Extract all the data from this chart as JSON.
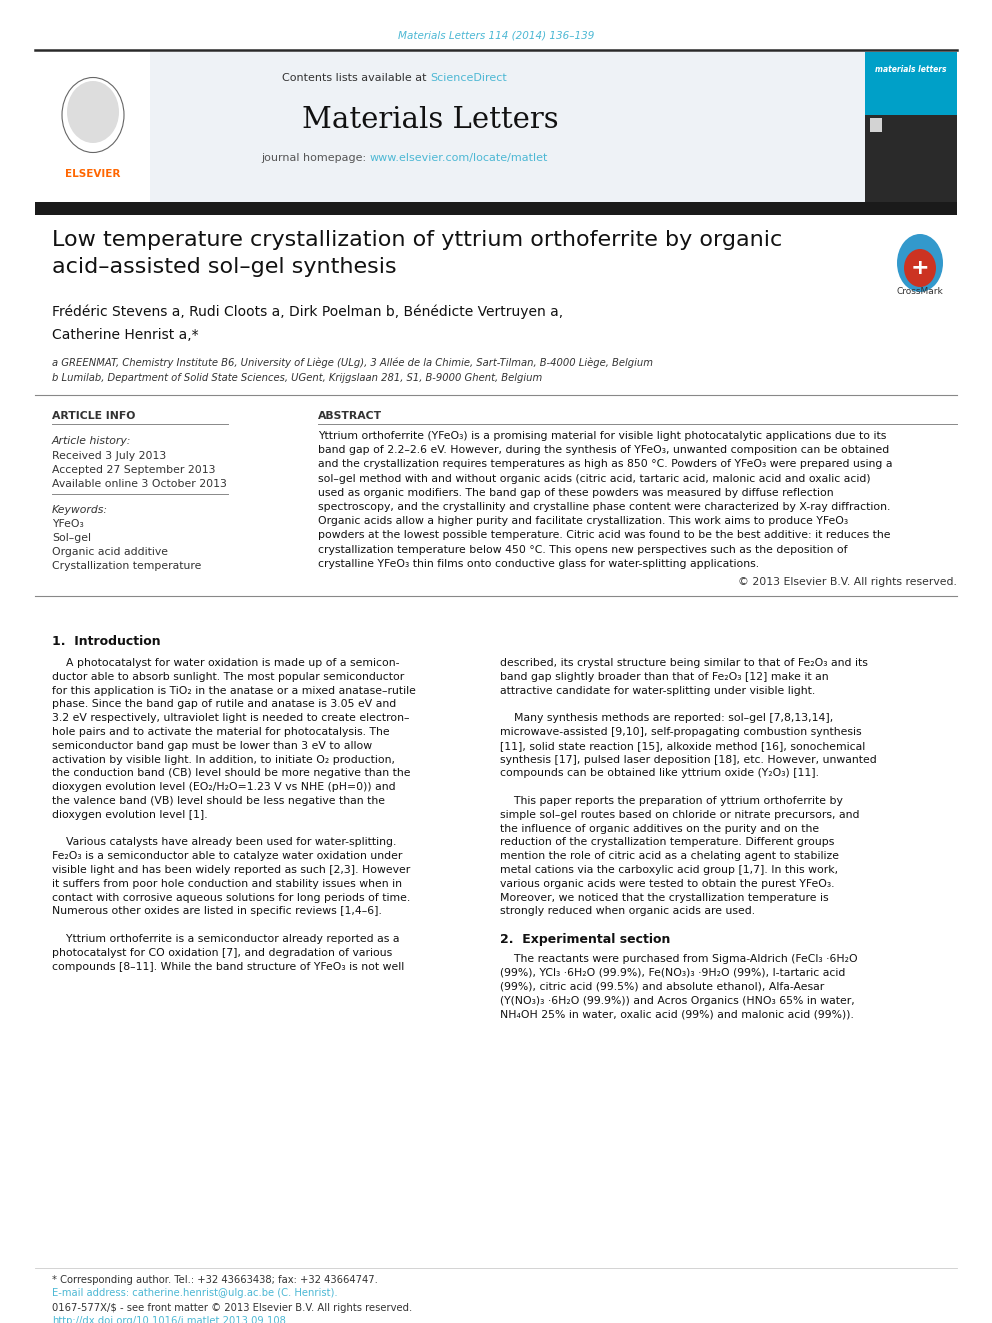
{
  "page_bg": "#ffffff",
  "top_citation": "Materials Letters 114 (2014) 136–139",
  "top_citation_color": "#4db8d4",
  "header_bg": "#eef2f6",
  "journal_title": "Materials Letters",
  "contents_text": "Contents lists available at ",
  "sciencedirect_text": "ScienceDirect",
  "sciencedirect_color": "#4db8d4",
  "journal_homepage_text": "journal homepage: ",
  "journal_url": "www.elsevier.com/locate/matlet",
  "journal_url_color": "#4db8d4",
  "elsevier_logo_color": "#ff6600",
  "dark_bar_color": "#1a1a1a",
  "article_title_line1": "Low temperature crystallization of yttrium orthoferrite by organic",
  "article_title_line2": "acid–assisted sol–gel synthesis",
  "author_line1": "Frédéric Stevens a, Rudi Cloots a, Dirk Poelman b, Bénédicte Vertruyen a,",
  "author_line2": "Catherine Henrist a,*",
  "affiliation_a": "a GREENMAT, Chemistry Institute B6, University of Liège (ULg), 3 Allée de la Chimie, Sart-Tilman, B-4000 Liège, Belgium",
  "affiliation_b": "b Lumilab, Department of Solid State Sciences, UGent, Krijgslaan 281, S1, B-9000 Ghent, Belgium",
  "article_info_title": "ARTICLE INFO",
  "abstract_title": "ABSTRACT",
  "article_history_label": "Article history:",
  "received": "Received 3 July 2013",
  "accepted": "Accepted 27 September 2013",
  "available": "Available online 3 October 2013",
  "keywords_label": "Keywords:",
  "keyword1": "YFeO₃",
  "keyword2": "Sol–gel",
  "keyword3": "Organic acid additive",
  "keyword4": "Crystallization temperature",
  "copyright": "© 2013 Elsevier B.V. All rights reserved.",
  "intro_title": "1.  Introduction",
  "section2_title": "2.  Experimental section",
  "footer_text1": "* Corresponding author. Tel.: +32 43663438; fax: +32 43664747.",
  "footer_text2": "E-mail address: catherine.henrist@ulg.ac.be (C. Henrist).",
  "footer_issn": "0167-577X/$ - see front matter © 2013 Elsevier B.V. All rights reserved.",
  "footer_doi": "http://dx.doi.org/10.1016/j.matlet.2013.09.108",
  "ref_color": "#4db8d4",
  "footer_color": "#4db8d4",
  "abstract_lines": [
    "Yttrium orthoferrite (YFeO₃) is a promising material for visible light photocatalytic applications due to its",
    "band gap of 2.2–2.6 eV. However, during the synthesis of YFeO₃, unwanted composition can be obtained",
    "and the crystallization requires temperatures as high as 850 °C. Powders of YFeO₃ were prepared using a",
    "sol–gel method with and without organic acids (citric acid, tartaric acid, malonic acid and oxalic acid)",
    "used as organic modifiers. The band gap of these powders was measured by diffuse reflection",
    "spectroscopy, and the crystallinity and crystalline phase content were characterized by X-ray diffraction.",
    "Organic acids allow a higher purity and facilitate crystallization. This work aims to produce YFeO₃",
    "powders at the lowest possible temperature. Citric acid was found to be the best additive: it reduces the",
    "crystallization temperature below 450 °C. This opens new perspectives such as the deposition of",
    "crystalline YFeO₃ thin films onto conductive glass for water-splitting applications."
  ],
  "intro_left_lines": [
    "    A photocatalyst for water oxidation is made up of a semicon-",
    "ductor able to absorb sunlight. The most popular semiconductor",
    "for this application is TiO₂ in the anatase or a mixed anatase–rutile",
    "phase. Since the band gap of rutile and anatase is 3.05 eV and",
    "3.2 eV respectively, ultraviolet light is needed to create electron–",
    "hole pairs and to activate the material for photocatalysis. The",
    "semiconductor band gap must be lower than 3 eV to allow",
    "activation by visible light. In addition, to initiate O₂ production,",
    "the conduction band (CB) level should be more negative than the",
    "dioxygen evolution level (EO₂/H₂O=1.23 V vs NHE (pH=0)) and",
    "the valence band (VB) level should be less negative than the",
    "dioxygen evolution level [1].",
    "",
    "    Various catalysts have already been used for water-splitting.",
    "Fe₂O₃ is a semiconductor able to catalyze water oxidation under",
    "visible light and has been widely reported as such [2,3]. However",
    "it suffers from poor hole conduction and stability issues when in",
    "contact with corrosive aqueous solutions for long periods of time.",
    "Numerous other oxides are listed in specific reviews [1,4–6].",
    "",
    "    Yttrium orthoferrite is a semiconductor already reported as a",
    "photocatalyst for CO oxidation [7], and degradation of various",
    "compounds [8–11]. While the band structure of YFeO₃ is not well"
  ],
  "intro_right_lines": [
    "described, its crystal structure being similar to that of Fe₂O₃ and its",
    "band gap slightly broader than that of Fe₂O₃ [12] make it an",
    "attractive candidate for water-splitting under visible light.",
    "",
    "    Many synthesis methods are reported: sol–gel [7,8,13,14],",
    "microwave-assisted [9,10], self-propagating combustion synthesis",
    "[11], solid state reaction [15], alkoxide method [16], sonochemical",
    "synthesis [17], pulsed laser deposition [18], etc. However, unwanted",
    "compounds can be obtained like yttrium oxide (Y₂O₃) [11].",
    "",
    "    This paper reports the preparation of yttrium orthoferrite by",
    "simple sol–gel routes based on chloride or nitrate precursors, and",
    "the influence of organic additives on the purity and on the",
    "reduction of the crystallization temperature. Different groups",
    "mention the role of citric acid as a chelating agent to stabilize",
    "metal cations via the carboxylic acid group [1,7]. In this work,",
    "various organic acids were tested to obtain the purest YFeO₃.",
    "Moreover, we noticed that the crystallization temperature is",
    "strongly reduced when organic acids are used."
  ],
  "sec2_lines": [
    "    The reactants were purchased from Sigma-Aldrich (FeCl₃ ·6H₂O",
    "(99%), YCl₃ ·6H₂O (99.9%), Fe(NO₃)₃ ·9H₂O (99%), l-tartaric acid",
    "(99%), citric acid (99.5%) and absolute ethanol), Alfa-Aesar",
    "(Y(NO₃)₃ ·6H₂O (99.9%)) and Acros Organics (HNO₃ 65% in water,",
    "NH₄OH 25% in water, oxalic acid (99%) and malonic acid (99%))."
  ]
}
